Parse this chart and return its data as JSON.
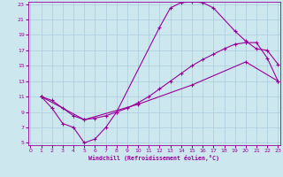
{
  "xlabel": "Windchill (Refroidissement éolien,°C)",
  "bg_color": "#cce8ee",
  "grid_color": "#aaccdd",
  "line_color": "#990099",
  "xmin": 0,
  "xmax": 23,
  "ymin": 5,
  "ymax": 23,
  "line1_x": [
    1,
    2,
    3,
    4,
    5,
    6,
    7,
    8,
    12,
    13,
    14,
    15,
    16,
    17,
    19,
    20,
    21,
    22,
    23
  ],
  "line1_y": [
    11,
    9.5,
    7.5,
    7.0,
    5.0,
    5.5,
    7.0,
    9.0,
    20.0,
    22.5,
    23.2,
    23.3,
    23.2,
    22.5,
    19.5,
    18.2,
    17.2,
    17.0,
    15.2
  ],
  "line2_x": [
    1,
    2,
    3,
    4,
    5,
    6,
    7,
    8,
    9,
    10,
    11,
    12,
    13,
    14,
    15,
    16,
    17,
    18,
    19,
    20,
    21,
    22,
    23
  ],
  "line2_y": [
    11,
    10.5,
    9.5,
    8.5,
    8.0,
    8.2,
    8.5,
    9.0,
    9.5,
    10.2,
    11.0,
    12.0,
    13.0,
    14.0,
    15.0,
    15.8,
    16.5,
    17.2,
    17.8,
    18.0,
    18.0,
    16.0,
    13.0
  ],
  "line3_x": [
    1,
    5,
    10,
    15,
    20,
    23
  ],
  "line3_y": [
    11,
    8.0,
    10.0,
    12.5,
    15.5,
    13.0
  ],
  "yticks": [
    5,
    7,
    9,
    11,
    13,
    15,
    17,
    19,
    21,
    23
  ],
  "xticks": [
    0,
    1,
    2,
    3,
    4,
    5,
    6,
    7,
    8,
    9,
    10,
    11,
    12,
    13,
    14,
    15,
    16,
    17,
    18,
    19,
    20,
    21,
    22,
    23
  ]
}
